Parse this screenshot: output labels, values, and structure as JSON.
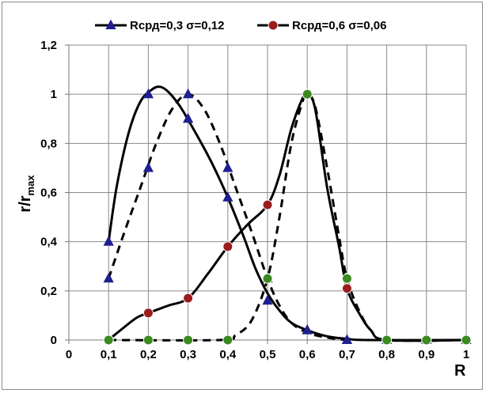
{
  "chart_data": {
    "type": "line",
    "xlabel": "R",
    "ylabel_main": "r/r",
    "ylabel_sub": "max",
    "xlim": [
      0,
      1
    ],
    "ylim": [
      0,
      1.2
    ],
    "x_ticks": [
      0,
      0.1,
      0.2,
      0.3,
      0.4,
      0.5,
      0.6,
      0.7,
      0.8,
      0.9,
      1
    ],
    "x_tick_labels": [
      "0",
      "0,1",
      "0,2",
      "0,3",
      "0,4",
      "0,5",
      "0,6",
      "0,7",
      "0,8",
      "0,9",
      "1"
    ],
    "y_ticks": [
      0,
      0.2,
      0.4,
      0.6,
      0.8,
      1,
      1.2
    ],
    "y_tick_labels": [
      "0",
      "0,2",
      "0,4",
      "0,6",
      "0,8",
      "1",
      "1,2"
    ],
    "grid": true,
    "legend_position": "top",
    "legend": [
      {
        "label": "Rсрд=0,3 σ=0,12",
        "marker": "triangle",
        "color": "#1f1f8f"
      },
      {
        "label": "Rсрд=0,6 σ=0,06",
        "marker": "circle",
        "color": "#9b1c1c"
      }
    ],
    "series": [
      {
        "name": "Rсрд=0,3 σ=0,12",
        "style": "solid",
        "marker": "triangle",
        "marker_color": "#1f1f8f",
        "x": [
          0.1,
          0.2,
          0.3,
          0.4,
          0.5,
          0.6,
          0.7,
          0.8,
          0.9,
          1.0
        ],
        "y": [
          0.4,
          1.0,
          0.9,
          0.58,
          0.16,
          0.04,
          0.0,
          0.0,
          0.0,
          0.0
        ],
        "curve": [
          [
            0.1,
            0.4
          ],
          [
            0.12,
            0.62
          ],
          [
            0.15,
            0.84
          ],
          [
            0.18,
            0.97
          ],
          [
            0.21,
            1.02
          ],
          [
            0.23,
            1.03
          ],
          [
            0.25,
            1.01
          ],
          [
            0.28,
            0.95
          ],
          [
            0.32,
            0.84
          ],
          [
            0.36,
            0.72
          ],
          [
            0.4,
            0.58
          ],
          [
            0.44,
            0.42
          ],
          [
            0.47,
            0.29
          ],
          [
            0.5,
            0.19
          ],
          [
            0.53,
            0.12
          ],
          [
            0.56,
            0.07
          ],
          [
            0.6,
            0.04
          ],
          [
            0.65,
            0.015
          ],
          [
            0.7,
            0.005
          ],
          [
            0.75,
            0.0
          ],
          [
            1.0,
            0.0
          ]
        ]
      },
      {
        "name": "",
        "style": "dashed",
        "marker": "triangle",
        "marker_color": "#1f1f8f",
        "x": [
          0.1,
          0.2,
          0.3,
          0.4,
          0.5,
          0.6,
          0.7
        ],
        "y": [
          0.25,
          0.7,
          1.0,
          0.7,
          0.25,
          0.04,
          0.0
        ],
        "curve": [
          [
            0.1,
            0.25
          ],
          [
            0.14,
            0.44
          ],
          [
            0.18,
            0.62
          ],
          [
            0.22,
            0.8
          ],
          [
            0.26,
            0.94
          ],
          [
            0.3,
            1.0
          ],
          [
            0.34,
            0.94
          ],
          [
            0.38,
            0.8
          ],
          [
            0.42,
            0.62
          ],
          [
            0.46,
            0.44
          ],
          [
            0.5,
            0.25
          ],
          [
            0.53,
            0.14
          ],
          [
            0.56,
            0.07
          ],
          [
            0.6,
            0.03
          ],
          [
            0.65,
            0.01
          ],
          [
            0.7,
            0.0
          ]
        ]
      },
      {
        "name": "Rсрд=0,6 σ=0,06",
        "style": "solid",
        "marker": "circle",
        "marker_color": "#9b1c1c",
        "x": [
          0.1,
          0.2,
          0.3,
          0.4,
          0.5,
          0.6,
          0.7,
          0.8,
          0.9,
          1.0
        ],
        "y": [
          0.0,
          0.11,
          0.17,
          0.38,
          0.55,
          1.0,
          0.21,
          0.0,
          0.0,
          0.0
        ],
        "curve": [
          [
            0.1,
            0.0
          ],
          [
            0.13,
            0.04
          ],
          [
            0.17,
            0.09
          ],
          [
            0.2,
            0.11
          ],
          [
            0.25,
            0.14
          ],
          [
            0.3,
            0.17
          ],
          [
            0.35,
            0.27
          ],
          [
            0.4,
            0.38
          ],
          [
            0.45,
            0.47
          ],
          [
            0.5,
            0.55
          ],
          [
            0.53,
            0.67
          ],
          [
            0.56,
            0.86
          ],
          [
            0.59,
            0.99
          ],
          [
            0.6,
            1.0
          ],
          [
            0.62,
            0.94
          ],
          [
            0.65,
            0.62
          ],
          [
            0.68,
            0.38
          ],
          [
            0.7,
            0.21
          ],
          [
            0.73,
            0.11
          ],
          [
            0.76,
            0.04
          ],
          [
            0.8,
            0.0
          ],
          [
            1.0,
            0.0
          ]
        ]
      },
      {
        "name": "",
        "style": "dashed",
        "marker": "circle",
        "marker_color": "#3a8a1f",
        "x": [
          0.1,
          0.2,
          0.3,
          0.4,
          0.5,
          0.6,
          0.7,
          0.8,
          0.9,
          1.0
        ],
        "y": [
          0.0,
          0.0,
          0.0,
          0.0,
          0.25,
          1.0,
          0.25,
          0.0,
          0.0,
          0.0
        ],
        "curve": [
          [
            0.1,
            0.0
          ],
          [
            0.38,
            0.0
          ],
          [
            0.42,
            0.02
          ],
          [
            0.46,
            0.08
          ],
          [
            0.5,
            0.25
          ],
          [
            0.53,
            0.5
          ],
          [
            0.56,
            0.8
          ],
          [
            0.59,
            0.98
          ],
          [
            0.6,
            1.0
          ],
          [
            0.62,
            0.95
          ],
          [
            0.65,
            0.7
          ],
          [
            0.68,
            0.42
          ],
          [
            0.7,
            0.25
          ],
          [
            0.73,
            0.12
          ],
          [
            0.76,
            0.04
          ],
          [
            0.8,
            0.0
          ],
          [
            1.0,
            0.0
          ]
        ]
      }
    ]
  }
}
